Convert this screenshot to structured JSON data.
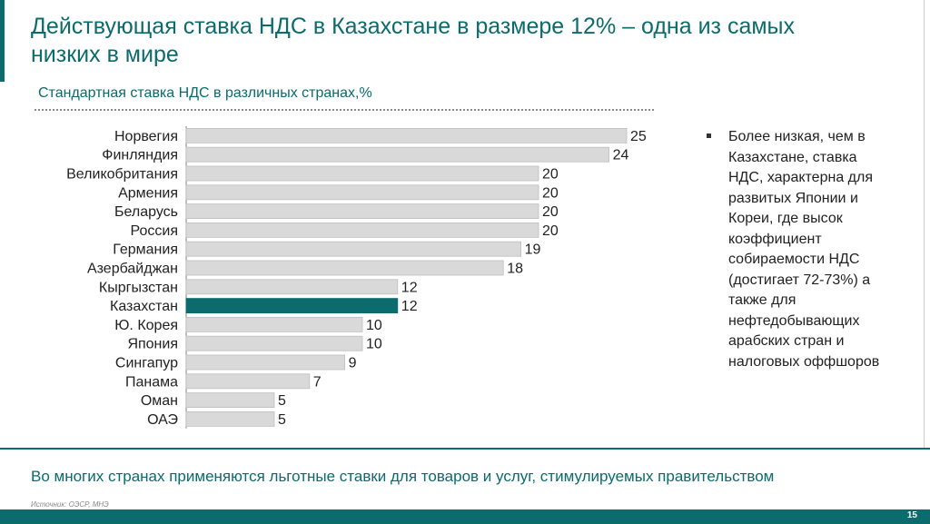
{
  "header": {
    "title": "Действующая ставка НДС в Казахстане в размере 12% – одна из самых низких в мире"
  },
  "chart_data": {
    "type": "bar",
    "orientation": "horizontal",
    "title": "Стандартная ставка НДС в различных странах,%",
    "categories": [
      "Норвегия",
      "Финляндия",
      "Великобритания",
      "Армения",
      "Беларусь",
      "Россия",
      "Германия",
      "Азербайджан",
      "Кыргызстан",
      "Казахстан",
      "Ю. Корея",
      "Япония",
      "Сингапур",
      "Панама",
      "Оман",
      "ОАЭ"
    ],
    "values": [
      25,
      24,
      20,
      20,
      20,
      20,
      19,
      18,
      12,
      12,
      10,
      10,
      9,
      7,
      5,
      5
    ],
    "highlight": "Казахстан",
    "colors": {
      "bar": "#d9d9d9",
      "highlight": "#0b6b6d"
    },
    "grid": false,
    "legend": "none"
  },
  "side_note": {
    "text": "Более низкая, чем в Казахстане, ставка НДС, характерна для развитых Японии и Кореи, где высок коэффициент собираемости НДС (достигает 72-73%) а также для нефтедобывающих арабских стран и налоговых оффшоров"
  },
  "footer": {
    "text": "Во многих странах применяются льготные ставки для товаров и услуг, стимулируемых правительством",
    "source": "Источник: ОЭСР, МНЭ",
    "page_number": "15"
  },
  "colors": {
    "accent": "#0b6b6d"
  }
}
